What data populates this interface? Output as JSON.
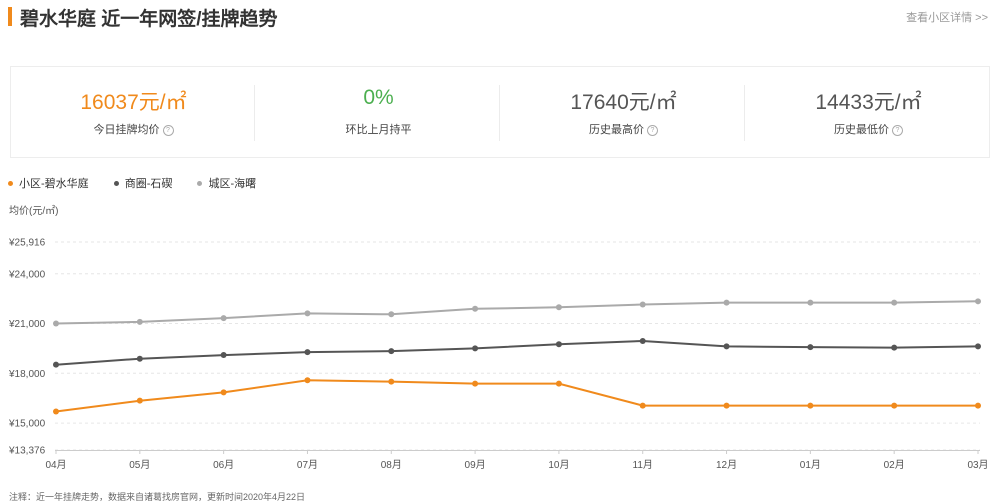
{
  "header": {
    "title": "碧水华庭 近一年网签/挂牌趋势",
    "detail_link": "查看小区详情 >>"
  },
  "stats": [
    {
      "value": "16037元/㎡",
      "label": "今日挂牌均价",
      "has_help": true
    },
    {
      "value": "0%",
      "label": "环比上月持平",
      "has_help": false
    },
    {
      "value": "17640元/㎡",
      "label": "历史最高价",
      "has_help": true
    },
    {
      "value": "14433元/㎡",
      "label": "历史最低价",
      "has_help": true
    }
  ],
  "colors": {
    "accent": "#f08a1c",
    "green": "#4caf50",
    "community": "#f08a1c",
    "business_circle": "#555555",
    "district": "#aaaaaa"
  },
  "footnote": "注释：近一年挂牌走势，数据来自诸葛找房官网，更新时间2020年4月22日",
  "chart_data": {
    "type": "line",
    "categories": [
      "04月",
      "05月",
      "06月",
      "07月",
      "08月",
      "09月",
      "10月",
      "11月",
      "12月",
      "01月",
      "02月",
      "03月"
    ],
    "ylabel": "均价(元/㎡)",
    "ylim": [
      13376,
      25916
    ],
    "yticks": [
      13376,
      15000,
      18000,
      21000,
      24000,
      25916
    ],
    "ytick_labels": [
      "¥13,376",
      "¥15,000",
      "¥18,000",
      "¥21,000",
      "¥24,000",
      "¥25,916"
    ],
    "grid": true,
    "legend_position": "top-left",
    "series": [
      {
        "name": "小区-碧水华庭",
        "color": "#f08a1c",
        "values": [
          15700,
          16350,
          16850,
          17580,
          17500,
          17380,
          17380,
          16050,
          16050,
          16050,
          16050,
          16050
        ]
      },
      {
        "name": "商圈-石碶",
        "color": "#555555",
        "values": [
          18520,
          18880,
          19100,
          19280,
          19340,
          19500,
          19750,
          19950,
          19620,
          19580,
          19550,
          19620
        ]
      },
      {
        "name": "城区-海曙",
        "color": "#aaaaaa",
        "values": [
          21000,
          21100,
          21330,
          21610,
          21560,
          21890,
          21980,
          22150,
          22260,
          22260,
          22260,
          22340
        ]
      }
    ]
  }
}
